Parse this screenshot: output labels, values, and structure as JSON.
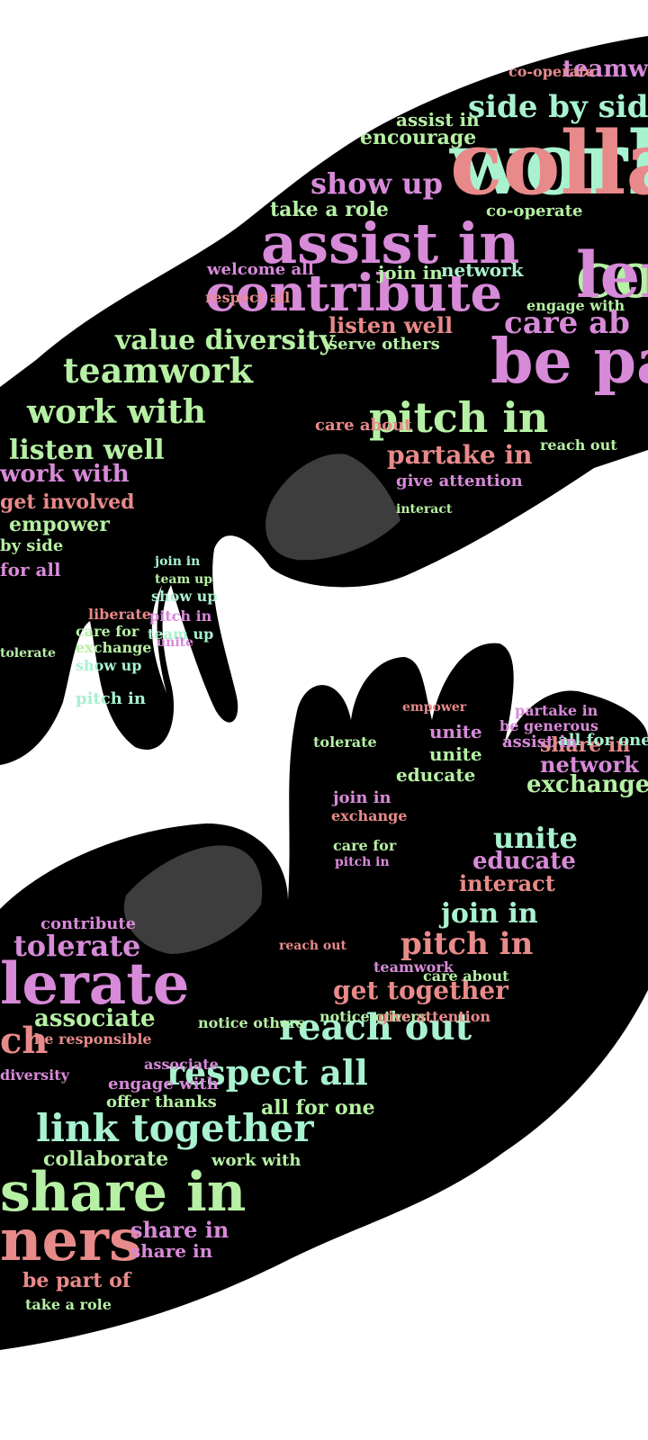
{
  "colors": {
    "background": "#ffffff",
    "silhouette": "#000000",
    "nail": "#3d3d3d",
    "pink": "#d78ad8",
    "green": "#b6f0a4",
    "mint": "#a9f2cf",
    "salmon": "#e88a8a"
  },
  "upper_hand_words": [
    {
      "text": "work",
      "color": "mint"
    },
    {
      "text": "co",
      "color": "green"
    },
    {
      "text": "be pa",
      "color": "pink"
    },
    {
      "text": "side by side",
      "color": "mint"
    },
    {
      "text": "teamw",
      "color": "pink"
    },
    {
      "text": "co-operate",
      "color": "salmon"
    },
    {
      "text": "encourage",
      "color": "green"
    },
    {
      "text": "assist in",
      "color": "green"
    },
    {
      "text": "show up",
      "color": "pink"
    },
    {
      "text": "take a role",
      "color": "green"
    },
    {
      "text": "assist in",
      "color": "pink"
    },
    {
      "text": "contribute",
      "color": "pink"
    },
    {
      "text": "welcome all",
      "color": "pink"
    },
    {
      "text": "join in",
      "color": "green"
    },
    {
      "text": "network",
      "color": "mint"
    },
    {
      "text": "value diversity",
      "color": "green"
    },
    {
      "text": "listen well",
      "color": "salmon"
    },
    {
      "text": "care ab",
      "color": "pink"
    },
    {
      "text": "teamwork",
      "color": "green"
    },
    {
      "text": "pitch in",
      "color": "green"
    },
    {
      "text": "work with",
      "color": "green"
    },
    {
      "text": "listen well",
      "color": "green"
    },
    {
      "text": "partake in",
      "color": "salmon"
    },
    {
      "text": "give attention",
      "color": "pink"
    },
    {
      "text": "work with",
      "color": "pink"
    },
    {
      "text": "get involved",
      "color": "salmon"
    },
    {
      "text": "empower",
      "color": "green"
    },
    {
      "text": "by side",
      "color": "green"
    },
    {
      "text": "for all",
      "color": "pink"
    },
    {
      "text": "join in",
      "color": "mint"
    },
    {
      "text": "team up",
      "color": "green"
    },
    {
      "text": "show up",
      "color": "mint"
    },
    {
      "text": "pitch in",
      "color": "pink"
    },
    {
      "text": "team up",
      "color": "mint"
    },
    {
      "text": "liberate",
      "color": "salmon"
    },
    {
      "text": "care for",
      "color": "green"
    },
    {
      "text": "exchange",
      "color": "green"
    },
    {
      "text": "show up",
      "color": "mint"
    },
    {
      "text": "pitch in",
      "color": "mint"
    },
    {
      "text": "unite",
      "color": "pink"
    },
    {
      "text": "tolerate",
      "color": "green"
    },
    {
      "text": "respect all",
      "color": "salmon"
    },
    {
      "text": "co-operate",
      "color": "green"
    },
    {
      "text": "engage with",
      "color": "green"
    },
    {
      "text": "serve others",
      "color": "green"
    },
    {
      "text": "care about",
      "color": "salmon"
    },
    {
      "text": "reach out",
      "color": "green"
    },
    {
      "text": "interact",
      "color": "green"
    },
    {
      "text": "collaborate",
      "color": "salmon"
    },
    {
      "text": "lend a hand",
      "color": "pink"
    }
  ],
  "lower_hand_words": [
    {
      "text": "lerate",
      "color": "pink"
    },
    {
      "text": "tolerate",
      "color": "pink"
    },
    {
      "text": "contribute",
      "color": "pink"
    },
    {
      "text": "associate",
      "color": "green"
    },
    {
      "text": "be responsible",
      "color": "salmon"
    },
    {
      "text": "ch",
      "color": "salmon"
    },
    {
      "text": "reach out",
      "color": "mint"
    },
    {
      "text": "get together",
      "color": "salmon"
    },
    {
      "text": "respect all",
      "color": "mint"
    },
    {
      "text": "all for one",
      "color": "green"
    },
    {
      "text": "offer thanks",
      "color": "green"
    },
    {
      "text": "link together",
      "color": "mint"
    },
    {
      "text": "collaborate",
      "color": "green"
    },
    {
      "text": "work with",
      "color": "green"
    },
    {
      "text": "share in",
      "color": "green"
    },
    {
      "text": "ners",
      "color": "salmon"
    },
    {
      "text": "share in",
      "color": "pink"
    },
    {
      "text": "share in",
      "color": "pink"
    },
    {
      "text": "be part of",
      "color": "salmon"
    },
    {
      "text": "take a role",
      "color": "green"
    },
    {
      "text": "pitch in",
      "color": "salmon"
    },
    {
      "text": "join in",
      "color": "mint"
    },
    {
      "text": "interact",
      "color": "salmon"
    },
    {
      "text": "educate",
      "color": "pink"
    },
    {
      "text": "unite",
      "color": "mint"
    },
    {
      "text": "exchange",
      "color": "green"
    },
    {
      "text": "network",
      "color": "pink"
    },
    {
      "text": "share in",
      "color": "salmon"
    },
    {
      "text": "all for one",
      "color": "mint"
    },
    {
      "text": "unite",
      "color": "pink"
    },
    {
      "text": "unite",
      "color": "green"
    },
    {
      "text": "educate",
      "color": "green"
    },
    {
      "text": "assist in",
      "color": "pink"
    },
    {
      "text": "be generous",
      "color": "pink"
    },
    {
      "text": "partake in",
      "color": "pink"
    },
    {
      "text": "empower",
      "color": "salmon"
    },
    {
      "text": "tolerate",
      "color": "green"
    },
    {
      "text": "exchange",
      "color": "salmon"
    },
    {
      "text": "join in",
      "color": "pink"
    },
    {
      "text": "care for",
      "color": "green"
    },
    {
      "text": "pitch in",
      "color": "pink"
    },
    {
      "text": "reach out",
      "color": "salmon"
    },
    {
      "text": "care about",
      "color": "green"
    },
    {
      "text": "notice others",
      "color": "green"
    },
    {
      "text": "give attention",
      "color": "salmon"
    },
    {
      "text": "teamwork",
      "color": "pink"
    },
    {
      "text": "diversity",
      "color": "pink"
    },
    {
      "text": "engage with",
      "color": "pink"
    },
    {
      "text": "associate",
      "color": "pink"
    },
    {
      "text": "notice others",
      "color": "green"
    }
  ]
}
